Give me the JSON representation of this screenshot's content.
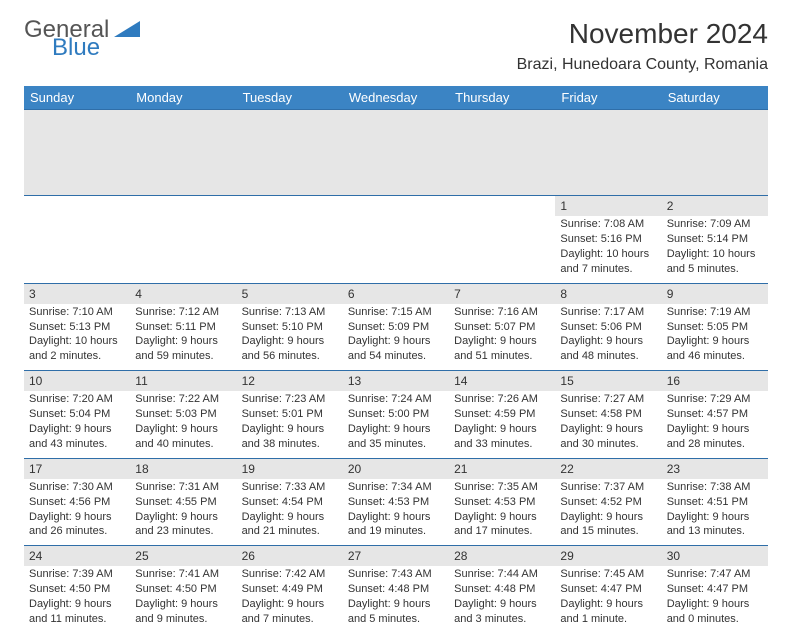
{
  "logo": {
    "word1": "General",
    "word2": "Blue",
    "color1": "#555555",
    "color2": "#2f7bbf"
  },
  "title": "November 2024",
  "location": "Brazi, Hunedoara County, Romania",
  "header_bg": "#3b84c4",
  "header_fg": "#ffffff",
  "row_divider": "#2f6ea8",
  "shade_bg": "#e6e6e6",
  "weekdays": [
    "Sunday",
    "Monday",
    "Tuesday",
    "Wednesday",
    "Thursday",
    "Friday",
    "Saturday"
  ],
  "weeks": [
    [
      null,
      null,
      null,
      null,
      null,
      {
        "d": "1",
        "sr": "7:08 AM",
        "ss": "5:16 PM",
        "dl": "10 hours and 7 minutes."
      },
      {
        "d": "2",
        "sr": "7:09 AM",
        "ss": "5:14 PM",
        "dl": "10 hours and 5 minutes."
      }
    ],
    [
      {
        "d": "3",
        "sr": "7:10 AM",
        "ss": "5:13 PM",
        "dl": "10 hours and 2 minutes."
      },
      {
        "d": "4",
        "sr": "7:12 AM",
        "ss": "5:11 PM",
        "dl": "9 hours and 59 minutes."
      },
      {
        "d": "5",
        "sr": "7:13 AM",
        "ss": "5:10 PM",
        "dl": "9 hours and 56 minutes."
      },
      {
        "d": "6",
        "sr": "7:15 AM",
        "ss": "5:09 PM",
        "dl": "9 hours and 54 minutes."
      },
      {
        "d": "7",
        "sr": "7:16 AM",
        "ss": "5:07 PM",
        "dl": "9 hours and 51 minutes."
      },
      {
        "d": "8",
        "sr": "7:17 AM",
        "ss": "5:06 PM",
        "dl": "9 hours and 48 minutes."
      },
      {
        "d": "9",
        "sr": "7:19 AM",
        "ss": "5:05 PM",
        "dl": "9 hours and 46 minutes."
      }
    ],
    [
      {
        "d": "10",
        "sr": "7:20 AM",
        "ss": "5:04 PM",
        "dl": "9 hours and 43 minutes."
      },
      {
        "d": "11",
        "sr": "7:22 AM",
        "ss": "5:03 PM",
        "dl": "9 hours and 40 minutes."
      },
      {
        "d": "12",
        "sr": "7:23 AM",
        "ss": "5:01 PM",
        "dl": "9 hours and 38 minutes."
      },
      {
        "d": "13",
        "sr": "7:24 AM",
        "ss": "5:00 PM",
        "dl": "9 hours and 35 minutes."
      },
      {
        "d": "14",
        "sr": "7:26 AM",
        "ss": "4:59 PM",
        "dl": "9 hours and 33 minutes."
      },
      {
        "d": "15",
        "sr": "7:27 AM",
        "ss": "4:58 PM",
        "dl": "9 hours and 30 minutes."
      },
      {
        "d": "16",
        "sr": "7:29 AM",
        "ss": "4:57 PM",
        "dl": "9 hours and 28 minutes."
      }
    ],
    [
      {
        "d": "17",
        "sr": "7:30 AM",
        "ss": "4:56 PM",
        "dl": "9 hours and 26 minutes."
      },
      {
        "d": "18",
        "sr": "7:31 AM",
        "ss": "4:55 PM",
        "dl": "9 hours and 23 minutes."
      },
      {
        "d": "19",
        "sr": "7:33 AM",
        "ss": "4:54 PM",
        "dl": "9 hours and 21 minutes."
      },
      {
        "d": "20",
        "sr": "7:34 AM",
        "ss": "4:53 PM",
        "dl": "9 hours and 19 minutes."
      },
      {
        "d": "21",
        "sr": "7:35 AM",
        "ss": "4:53 PM",
        "dl": "9 hours and 17 minutes."
      },
      {
        "d": "22",
        "sr": "7:37 AM",
        "ss": "4:52 PM",
        "dl": "9 hours and 15 minutes."
      },
      {
        "d": "23",
        "sr": "7:38 AM",
        "ss": "4:51 PM",
        "dl": "9 hours and 13 minutes."
      }
    ],
    [
      {
        "d": "24",
        "sr": "7:39 AM",
        "ss": "4:50 PM",
        "dl": "9 hours and 11 minutes."
      },
      {
        "d": "25",
        "sr": "7:41 AM",
        "ss": "4:50 PM",
        "dl": "9 hours and 9 minutes."
      },
      {
        "d": "26",
        "sr": "7:42 AM",
        "ss": "4:49 PM",
        "dl": "9 hours and 7 minutes."
      },
      {
        "d": "27",
        "sr": "7:43 AM",
        "ss": "4:48 PM",
        "dl": "9 hours and 5 minutes."
      },
      {
        "d": "28",
        "sr": "7:44 AM",
        "ss": "4:48 PM",
        "dl": "9 hours and 3 minutes."
      },
      {
        "d": "29",
        "sr": "7:45 AM",
        "ss": "4:47 PM",
        "dl": "9 hours and 1 minute."
      },
      {
        "d": "30",
        "sr": "7:47 AM",
        "ss": "4:47 PM",
        "dl": "9 hours and 0 minutes."
      }
    ]
  ],
  "labels": {
    "sunrise": "Sunrise:",
    "sunset": "Sunset:",
    "daylight": "Daylight:"
  }
}
